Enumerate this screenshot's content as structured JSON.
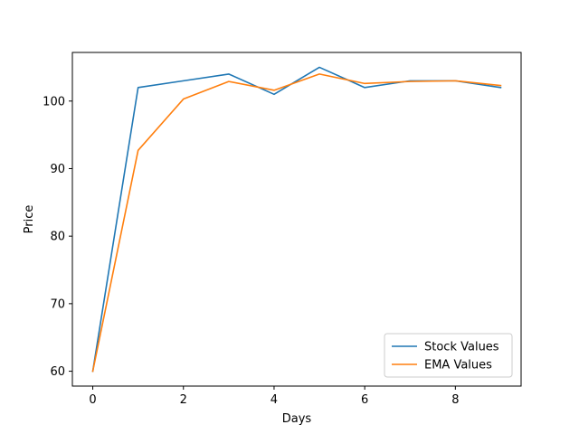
{
  "chart_data": {
    "type": "line",
    "title": "",
    "xlabel": "Days",
    "ylabel": "Price",
    "xlim": [
      -0.45,
      9.45
    ],
    "ylim": [
      57.8,
      107.2
    ],
    "xticks": [
      0,
      2,
      4,
      6,
      8
    ],
    "yticks": [
      60,
      70,
      80,
      90,
      100
    ],
    "grid": false,
    "legend_position": "lower-right",
    "x": [
      0,
      1,
      2,
      3,
      4,
      5,
      6,
      7,
      8,
      9
    ],
    "series": [
      {
        "name": "Stock Values",
        "color": "#1f77b4",
        "values": [
          60,
          102,
          103,
          104,
          101,
          105,
          102,
          103,
          103,
          102
        ]
      },
      {
        "name": "EMA Values",
        "color": "#ff7f0e",
        "values": [
          60,
          92.7,
          100.3,
          102.9,
          101.6,
          104.0,
          102.6,
          102.9,
          103.0,
          102.3
        ]
      }
    ]
  }
}
